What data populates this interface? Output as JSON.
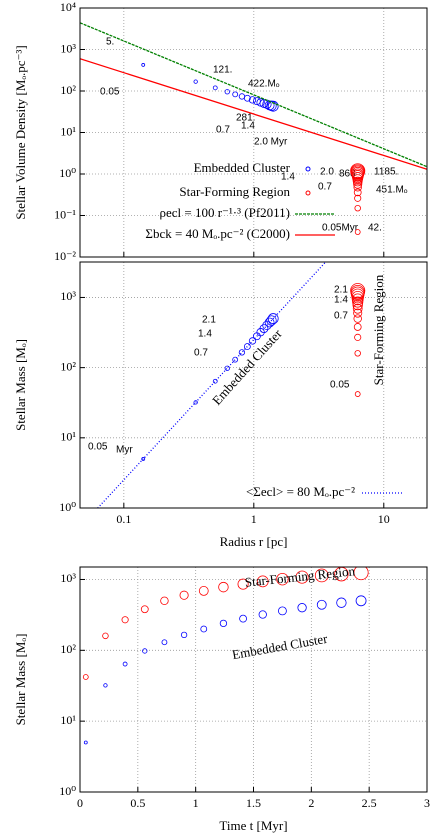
{
  "chart_data": [
    {
      "type": "scatter",
      "ylabel": "Stellar Volume Density [Mₒ.pc⁻³]",
      "xlim": [
        0.046,
        21.5
      ],
      "xlog": true,
      "xticks": [
        0.1,
        1,
        10
      ],
      "ylim": [
        0.01,
        10000
      ],
      "ylog": true,
      "yticks": [
        {
          "value": 0.01,
          "label": "10⁻²"
        },
        {
          "value": 0.1,
          "label": "10⁻¹"
        },
        {
          "value": 1,
          "label": "10⁰"
        },
        {
          "value": 10,
          "label": "10¹"
        },
        {
          "value": 100,
          "label": "10²"
        },
        {
          "value": 1000,
          "label": "10³"
        },
        {
          "value": 10000,
          "label": "10⁴"
        }
      ],
      "grid": true,
      "series": [
        {
          "name": "Embedded Cluster",
          "color": "#0000ff",
          "mode": "markers",
          "x": [
            0.141,
            0.357,
            0.505,
            0.625,
            0.719,
            0.81,
            0.892,
            0.977,
            1.056,
            1.128,
            1.197,
            1.262,
            1.323,
            1.368,
            1.41
          ],
          "values": [
            425,
            168,
            119,
            96,
            83,
            74,
            67,
            61,
            57,
            53,
            50,
            48,
            45,
            44,
            43
          ]
        },
        {
          "name": "Star-Forming Region",
          "color": "#ff0000",
          "mode": "markers",
          "x": [
            6.3,
            6.3,
            6.3,
            6.3,
            6.3,
            6.3,
            6.3,
            6.3,
            6.3,
            6.3,
            6.3,
            6.3,
            6.3,
            6.3,
            6.3
          ],
          "values": [
            0.04,
            0.15,
            0.26,
            0.36,
            0.48,
            0.57,
            0.66,
            0.74,
            0.82,
            0.9,
            0.96,
            1.03,
            1.09,
            1.14,
            1.19
          ]
        },
        {
          "name": "ρecl = 100 r⁻¹·³ (Pf2011)",
          "color": "#008000",
          "mode": "lines",
          "dash": "3,1",
          "x": [
            0.046,
            21.5
          ],
          "values": [
            4400,
            1.5
          ]
        },
        {
          "name": "Σbck = 40 Mₒ.pc⁻² (C2000)",
          "color": "#ff0000",
          "mode": "lines",
          "x": [
            0.046,
            21.5
          ],
          "values": [
            600,
            1.3
          ]
        }
      ],
      "annotations": [
        "5.",
        "0.05",
        "121.",
        "422.Mₒ",
        "281.",
        "0.7",
        "1.4",
        "2.0 Myr",
        "1.4",
        "2.0",
        "868",
        "1185.",
        "0.7",
        "451.Mₒ",
        "0.05Myr",
        "42."
      ]
    },
    {
      "type": "scatter",
      "xlabel": "Radius r [pc]",
      "ylabel": "Stellar Mass [Mₒ]",
      "xlim": [
        0.046,
        21.5
      ],
      "xlog": true,
      "xticks": [
        0.1,
        1,
        10
      ],
      "ylim": [
        1,
        3200
      ],
      "ylog": true,
      "yticks": [
        {
          "value": 1,
          "label": "10⁰"
        },
        {
          "value": 10,
          "label": "10¹"
        },
        {
          "value": 100,
          "label": "10²"
        },
        {
          "value": 1000,
          "label": "10³"
        }
      ],
      "grid": true,
      "series": [
        {
          "name": "Embedded Cluster",
          "color": "#0000ff",
          "mode": "markers",
          "x": [
            0.141,
            0.357,
            0.505,
            0.625,
            0.719,
            0.81,
            0.892,
            0.977,
            1.056,
            1.128,
            1.197,
            1.262,
            1.323,
            1.368,
            1.41
          ],
          "values": [
            5,
            32,
            64,
            98,
            130,
            165,
            200,
            240,
            280,
            320,
            360,
            400,
            440,
            470,
            500
          ]
        },
        {
          "name": "Star-Forming Region",
          "color": "#ff0000",
          "mode": "markers",
          "x": [
            6.3,
            6.3,
            6.3,
            6.3,
            6.3,
            6.3,
            6.3,
            6.3,
            6.3,
            6.3,
            6.3,
            6.3,
            6.3,
            6.3,
            6.3
          ],
          "values": [
            42,
            160,
            270,
            380,
            500,
            600,
            690,
            780,
            860,
            940,
            1010,
            1080,
            1140,
            1190,
            1250
          ]
        },
        {
          "name": "<Σecl> = 80 Mₒ.pc⁻²",
          "color": "#0000ff",
          "mode": "lines",
          "dash": "1,2",
          "x": [
            0.063,
            3.57
          ],
          "values": [
            1,
            3200
          ]
        }
      ],
      "annotations": [
        "2.1",
        "1.4",
        "0.7",
        "0.05",
        "Myr",
        "2.1",
        "1.4",
        "0.7",
        "0.05"
      ]
    },
    {
      "type": "scatter",
      "xlabel": "Time t [Myr]",
      "ylabel": "Stellar Mass [Mₒ]",
      "xlim": [
        0,
        3
      ],
      "xlog": false,
      "xticks": [
        0,
        0.5,
        1,
        1.5,
        2,
        2.5,
        3
      ],
      "ylim": [
        1,
        1500
      ],
      "ylog": true,
      "yticks": [
        {
          "value": 1,
          "label": "10⁰"
        },
        {
          "value": 10,
          "label": "10¹"
        },
        {
          "value": 100,
          "label": "10²"
        },
        {
          "value": 1000,
          "label": "10³"
        }
      ],
      "grid": true,
      "x": [
        0.05,
        0.22,
        0.39,
        0.56,
        0.73,
        0.9,
        1.07,
        1.24,
        1.41,
        1.58,
        1.75,
        1.92,
        2.09,
        2.26,
        2.43
      ],
      "series": [
        {
          "name": "Star-Forming Region",
          "color": "#ff0000",
          "mode": "markers",
          "values": [
            42,
            160,
            270,
            380,
            500,
            600,
            690,
            780,
            860,
            940,
            1010,
            1080,
            1140,
            1190,
            1250
          ]
        },
        {
          "name": "Embedded Cluster",
          "color": "#0000ff",
          "mode": "markers",
          "values": [
            5,
            32,
            64,
            98,
            130,
            165,
            200,
            240,
            280,
            320,
            360,
            400,
            440,
            470,
            500
          ]
        }
      ]
    }
  ]
}
